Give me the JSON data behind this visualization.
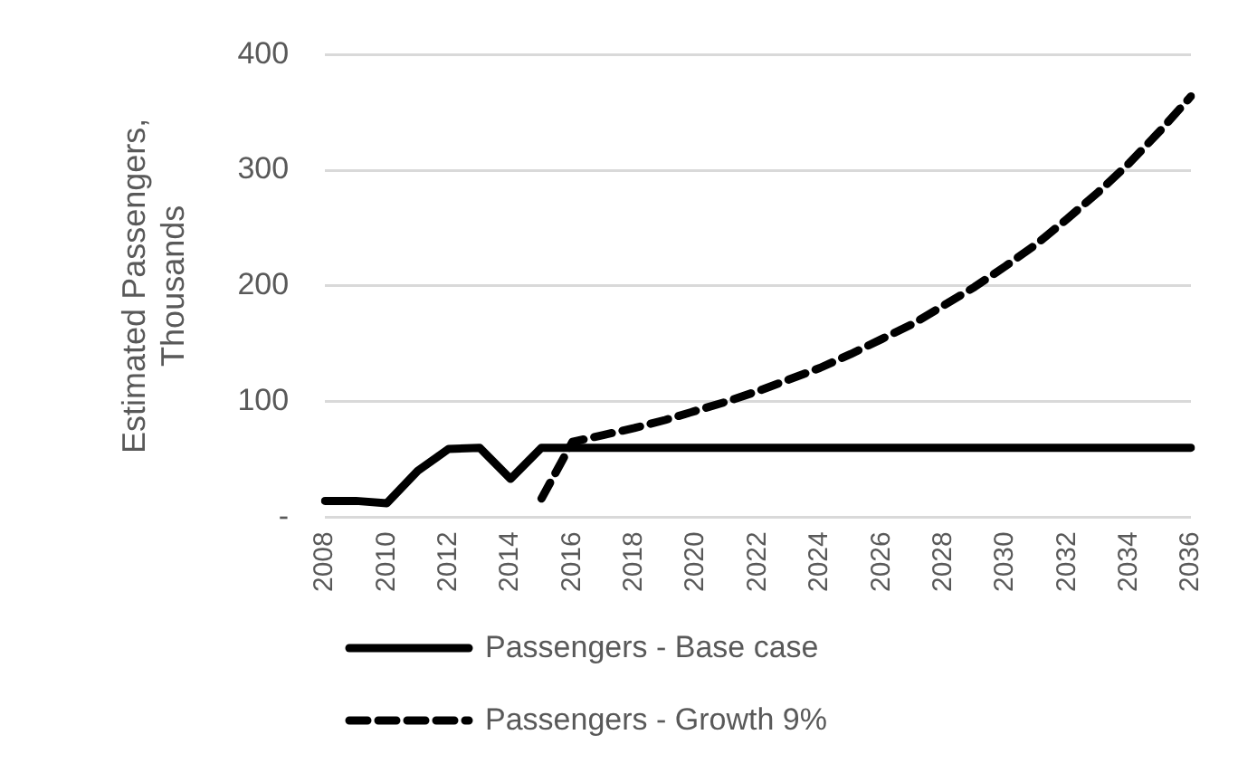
{
  "chart_data": {
    "type": "line",
    "ylabel": "Estimated Passengers, Thousands",
    "categories": [
      "2008",
      null,
      "2010",
      null,
      "2012",
      null,
      "2014",
      null,
      "2016",
      null,
      "2018",
      null,
      "2020",
      null,
      "2022",
      null,
      "2024",
      null,
      "2026",
      null,
      "2028",
      null,
      "2030",
      null,
      "2032",
      null,
      "2034",
      null,
      "2036"
    ],
    "series": [
      {
        "name": "Passengers - Base case",
        "color": "#000000",
        "line_style": "solid",
        "values": [
          14,
          14,
          12,
          40,
          59,
          60,
          33,
          60,
          60,
          60,
          60,
          60,
          60,
          60,
          60,
          60,
          60,
          60,
          60,
          60,
          60,
          60,
          60,
          60,
          60,
          60,
          60,
          60,
          60
        ]
      },
      {
        "name": "Passengers - Growth 9%",
        "color": "#000000",
        "line_style": "dashed",
        "values": [
          null,
          null,
          null,
          null,
          null,
          null,
          null,
          16,
          65,
          71,
          77,
          84,
          92,
          100,
          109,
          119,
          129,
          141,
          154,
          167,
          183,
          199,
          217,
          236,
          258,
          281,
          306,
          334,
          364
        ]
      }
    ],
    "ylim": [
      0,
      400
    ],
    "yticks": [
      {
        "value": 0,
        "label": "-"
      },
      100,
      200,
      300,
      400
    ],
    "grid": "y",
    "legend": "bottom",
    "marker": "none"
  }
}
